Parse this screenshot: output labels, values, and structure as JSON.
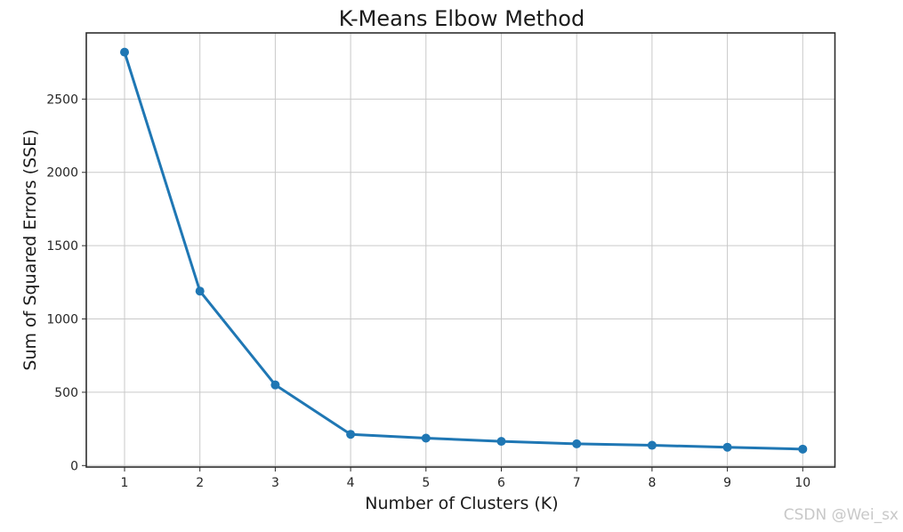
{
  "page": {
    "background": "#ffffff"
  },
  "chart_data": {
    "type": "line",
    "title": "K-Means Elbow Method",
    "xlabel": "Number of Clusters (K)",
    "ylabel": "Sum of Squared Errors (SSE)",
    "x": [
      1,
      2,
      3,
      4,
      5,
      6,
      7,
      8,
      9,
      10
    ],
    "x_ticks": [
      "1",
      "2",
      "3",
      "4",
      "5",
      "6",
      "7",
      "8",
      "9",
      "10"
    ],
    "y_ticks": [
      0,
      500,
      1000,
      1500,
      2000,
      2500
    ],
    "series": [
      {
        "name": "SSE",
        "values": [
          2820,
          1190,
          550,
          213,
          187,
          165,
          148,
          138,
          125,
          112
        ]
      }
    ],
    "xlim": [
      0.5,
      10.45
    ],
    "ylim": [
      -15,
      2950
    ],
    "grid": true,
    "legend": "none",
    "line_color": "#1f77b4",
    "marker": "o"
  },
  "watermark": {
    "text": "CSDN @Wei_sx",
    "color": "#c8c8c8"
  },
  "colors": {
    "accent": "#1f77b4",
    "grid": "#c9c9c9",
    "spine": "#2e2e2e",
    "text": "#1a1a1a"
  }
}
